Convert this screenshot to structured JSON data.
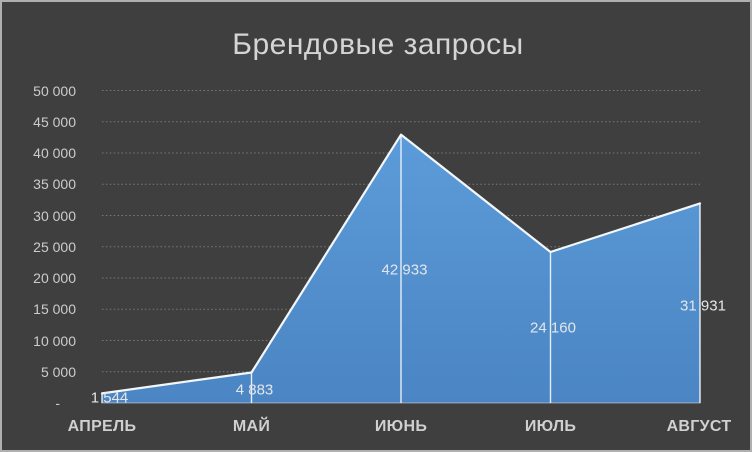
{
  "title": "Брендовые запросы",
  "colors": {
    "background": "#3f3f3f",
    "frame_border": "#b0b0b0",
    "area_gradient_top": "#5c9bd9",
    "area_gradient_bottom": "#4b85c3",
    "series_line": "#f3f7fb",
    "gridline": "#929292",
    "title_text": "#d5d5d5",
    "axis_text": "#cccccc",
    "data_label_text": "#e3e6ea"
  },
  "chart_data": {
    "type": "area",
    "title": "Брендовые запросы",
    "categories": [
      "АПРЕЛЬ",
      "МАЙ",
      "ИЮНЬ",
      "ИЮЛЬ",
      "АВГУСТ"
    ],
    "values": [
      1544,
      4883,
      42933,
      24160,
      31931
    ],
    "data_labels": [
      "1 544",
      "4 883",
      "42 933",
      "24 160",
      "31 931"
    ],
    "ylim": [
      0,
      50000
    ],
    "y_tick_interval": 5000,
    "y_ticks_top_to_bottom": [
      "50 000",
      "45 000",
      "40 000",
      "35 000",
      "30 000",
      "25 000",
      "20 000",
      "15 000",
      "10 000",
      "5 000",
      "-"
    ],
    "grid": "horizontal-dotted",
    "legend": "none",
    "drop_lines": true
  }
}
